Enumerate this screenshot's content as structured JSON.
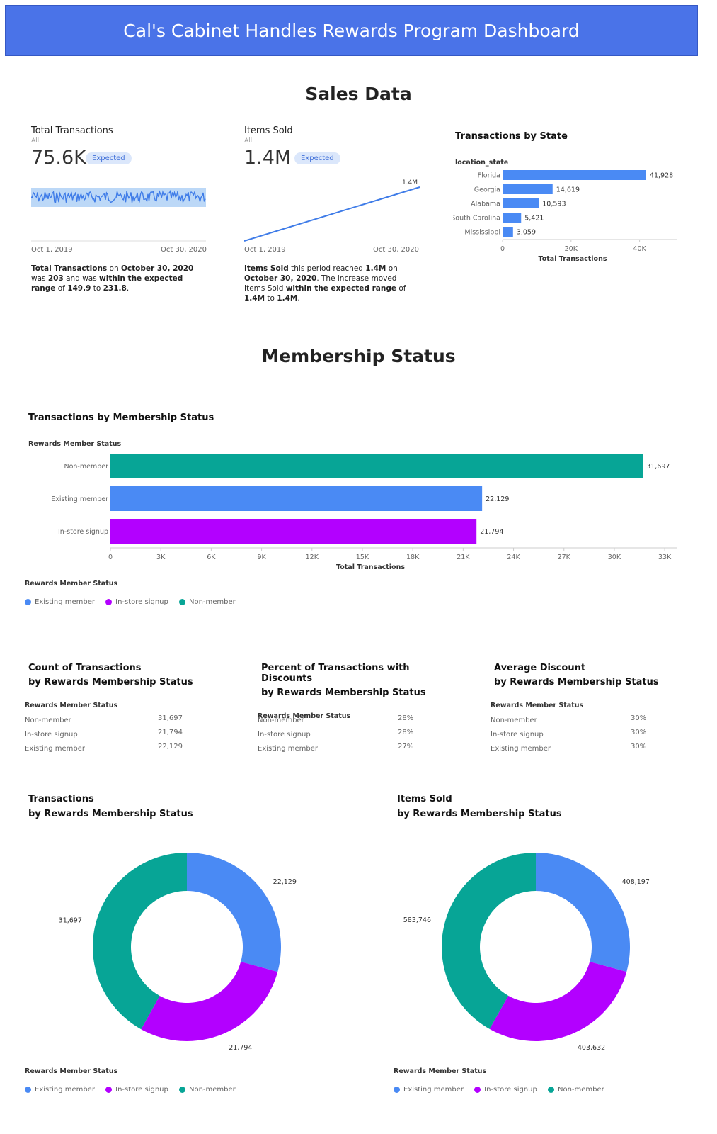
{
  "header": {
    "title": "Cal's Cabinet Handles Rewards Program Dashboard",
    "color": "#4a73e8"
  },
  "sections": {
    "sales": "Sales Data",
    "membership": "Membership Status"
  },
  "kpis": [
    {
      "title": "Total Transactions",
      "subtitle": "All",
      "value": "75.6K",
      "badge": "Expected",
      "start_date": "Oct 1, 2019",
      "end_date": "Oct 30, 2020",
      "desc": {
        "p1": "Total Transactions",
        "p2": " on ",
        "p3": "October 30, 2020",
        "p4": " was ",
        "p5": "203",
        "p6": " and was ",
        "p7": "within the expected range",
        "p8": " of ",
        "p9": "149.9",
        "p10": " to ",
        "p11": "231.8",
        "p12": "."
      }
    },
    {
      "title": "Items Sold",
      "subtitle": "All",
      "value": "1.4M",
      "badge": "Expected",
      "start_date": "Oct 1, 2019",
      "end_date": "Oct 30, 2020",
      "end_label": "1.4M",
      "desc": {
        "p1": "Items Sold",
        "p2": " this period reached ",
        "p3": "1.4M",
        "p4": " on ",
        "p5": "October 30, 2020",
        "p6": ". The increase moved Items Sold ",
        "p7": "within the expected range",
        "p8": " of ",
        "p9": "1.4M",
        "p10": " to ",
        "p11": "1.4M",
        "p12": "."
      }
    }
  ],
  "chart_data": [
    {
      "type": "bar",
      "orientation": "horizontal",
      "title": "Transactions by State",
      "ylabel": "location_state",
      "xlabel": "Total Transactions",
      "categories": [
        "Florida",
        "Georgia",
        "Alabama",
        "South Carolina",
        "Mississippi"
      ],
      "values": [
        41928,
        14619,
        10593,
        5421,
        3059
      ],
      "value_labels": [
        "41,928",
        "14,619",
        "10,593",
        "5,421",
        "3,059"
      ],
      "xlim": [
        0,
        50000
      ],
      "ticks": [
        0,
        20000,
        40000
      ],
      "tick_labels": [
        "0",
        "20K",
        "40K"
      ],
      "color": "#4a8af4"
    },
    {
      "type": "bar",
      "orientation": "horizontal",
      "title": "Transactions by Membership Status",
      "ylabel": "Rewards Member Status",
      "xlabel": "Total Transactions",
      "categories": [
        "Non-member",
        "Existing member",
        "In-store signup"
      ],
      "values": [
        31697,
        22129,
        21794
      ],
      "value_labels": [
        "31,697",
        "22,129",
        "21,794"
      ],
      "colors": [
        "#07a596",
        "#4a8af4",
        "#b300ff"
      ],
      "xlim": [
        0,
        33500
      ],
      "ticks": [
        0,
        3000,
        6000,
        9000,
        12000,
        15000,
        18000,
        21000,
        24000,
        27000,
        30000,
        33000
      ],
      "tick_labels": [
        "0",
        "3K",
        "6K",
        "9K",
        "12K",
        "15K",
        "18K",
        "21K",
        "24K",
        "27K",
        "30K",
        "33K"
      ]
    },
    {
      "type": "table",
      "title_line1": "Count of Transactions",
      "title_line2": "by Rewards Membership Status",
      "column": "Rewards Member Status",
      "rows": [
        {
          "label": "Non-member",
          "value": "31,697"
        },
        {
          "label": "In-store signup",
          "value": "21,794"
        },
        {
          "label": "Existing member",
          "value": "22,129"
        }
      ]
    },
    {
      "type": "table",
      "title_line1": "Percent of Transactions with Discounts",
      "title_line2": "by Rewards Membership Status",
      "column": "Rewards Member Status",
      "rows": [
        {
          "label": "Non-member",
          "value": "28%"
        },
        {
          "label": "In-store signup",
          "value": "28%"
        },
        {
          "label": "Existing member",
          "value": "27%"
        }
      ]
    },
    {
      "type": "table",
      "title_line1": "Average Discount",
      "title_line2": "by Rewards Membership Status",
      "column": "Rewards Member Status",
      "rows": [
        {
          "label": "Non-member",
          "value": "30%"
        },
        {
          "label": "In-store signup",
          "value": "30%"
        },
        {
          "label": "Existing member",
          "value": "30%"
        }
      ]
    },
    {
      "type": "pie",
      "donut": true,
      "title_line1": "Transactions",
      "title_line2": "by Rewards Membership Status",
      "categories": [
        "Existing member",
        "In-store signup",
        "Non-member"
      ],
      "values": [
        22129,
        21794,
        31697
      ],
      "value_labels": [
        "22,129",
        "21,794",
        "31,697"
      ],
      "colors": [
        "#4a8af4",
        "#b300ff",
        "#07a596"
      ]
    },
    {
      "type": "pie",
      "donut": true,
      "title_line1": "Items Sold",
      "title_line2": "by Rewards Membership Status",
      "categories": [
        "Existing member",
        "In-store signup",
        "Non-member"
      ],
      "values": [
        408197,
        403632,
        583746
      ],
      "value_labels": [
        "408,197",
        "403,632",
        "583,746"
      ],
      "colors": [
        "#4a8af4",
        "#b300ff",
        "#07a596"
      ]
    }
  ],
  "legend": {
    "title": "Rewards Member Status",
    "items": [
      {
        "label": "Existing member",
        "color": "#4a8af4"
      },
      {
        "label": "In-store signup",
        "color": "#b300ff"
      },
      {
        "label": "Non-member",
        "color": "#07a596"
      }
    ]
  }
}
